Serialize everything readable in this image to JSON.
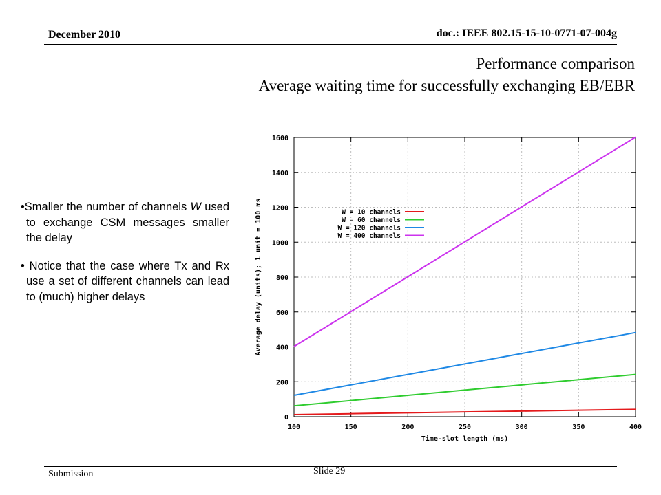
{
  "header": {
    "date": "December 2010",
    "doc_id": "doc.: IEEE 802.15-15-10-0771-07-004g"
  },
  "title": {
    "line1": "Performance comparison",
    "line2": "Average waiting time for successfully exchanging EB/EBR"
  },
  "bullets": [
    {
      "before": "Smaller the number of channels ",
      "var": "W",
      "after": " used to exchange CSM messages smaller the delay"
    },
    {
      "before": "Notice that the case where Tx and Rx use a set of different channels can lead to (much) higher delays",
      "var": "",
      "after": ""
    }
  ],
  "footer": {
    "submission": "Submission",
    "slide": "Slide 29"
  },
  "chart_data": {
    "type": "line",
    "xlabel": "Time-slot length (ms)",
    "ylabel": "Average delay (units); 1 unit = 100 ms",
    "xlim": [
      100,
      400
    ],
    "ylim": [
      0,
      1600
    ],
    "x_ticks": [
      100,
      150,
      200,
      250,
      300,
      350,
      400
    ],
    "y_ticks": [
      0,
      200,
      400,
      600,
      800,
      1000,
      1200,
      1400,
      1600
    ],
    "grid": true,
    "legend_position": "upper-left",
    "x": [
      100,
      150,
      200,
      250,
      300,
      350,
      400
    ],
    "series": [
      {
        "name": "W = 10 channels",
        "color": "#e41a1c",
        "values": [
          12,
          17,
          22,
          27,
          32,
          37,
          42
        ]
      },
      {
        "name": "W = 60 channels",
        "color": "#2ecc2e",
        "values": [
          62,
          92,
          122,
          152,
          182,
          212,
          242
        ]
      },
      {
        "name": "W = 120 channels",
        "color": "#1e88e5",
        "values": [
          122,
          182,
          242,
          302,
          362,
          422,
          482
        ]
      },
      {
        "name": "W = 400 channels",
        "color": "#cc33ee",
        "values": [
          402,
          602,
          802,
          1002,
          1202,
          1402,
          1602
        ]
      }
    ]
  }
}
